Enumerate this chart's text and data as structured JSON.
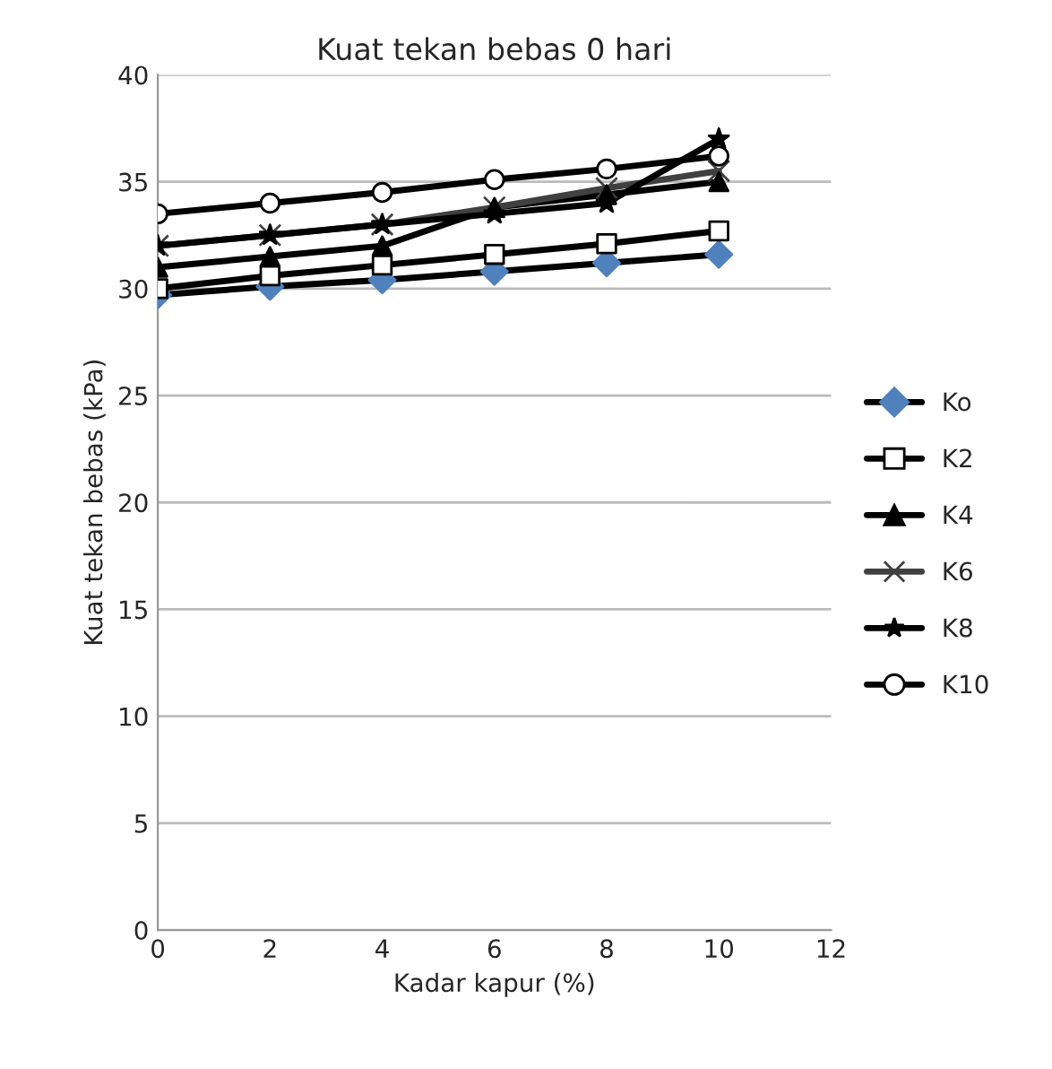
{
  "chart_data": {
    "type": "line",
    "title": "Kuat tekan bebas 0 hari",
    "xlabel": "Kadar kapur (%)",
    "ylabel": "Kuat tekan bebas (kPa)",
    "x": [
      0,
      2,
      4,
      6,
      8,
      10
    ],
    "xlim": [
      0,
      12
    ],
    "xticks": [
      0,
      2,
      4,
      6,
      8,
      10,
      12
    ],
    "ylim": [
      0,
      40
    ],
    "yticks": [
      0,
      5,
      10,
      15,
      20,
      25,
      30,
      35,
      40
    ],
    "grid": "y",
    "legend": "right",
    "line_style": "solid",
    "series": [
      {
        "name": "Ko",
        "color": "#000000",
        "colors": [
          "#4f81bd",
          "#4f81bd",
          "#4f81bd",
          "#4f81bd",
          "#4f81bd",
          "#4f81bd"
        ],
        "marker": "diamond",
        "values": [
          29.7,
          30.1,
          30.4,
          30.8,
          31.2,
          31.6
        ]
      },
      {
        "name": "K2",
        "color": "#000000",
        "marker": "square",
        "values": [
          30.0,
          30.6,
          31.1,
          31.6,
          32.1,
          32.7
        ]
      },
      {
        "name": "K4",
        "color": "#000000",
        "marker": "triangle",
        "values": [
          31.0,
          31.5,
          32.0,
          33.8,
          34.4,
          35.0
        ]
      },
      {
        "name": "K6",
        "color": "#404040",
        "marker": "cross",
        "values": [
          32.0,
          32.5,
          33.0,
          33.8,
          34.7,
          35.5
        ]
      },
      {
        "name": "K8",
        "color": "#000000",
        "marker": "star",
        "values": [
          32.0,
          32.5,
          33.0,
          33.5,
          34.0,
          37.0
        ]
      },
      {
        "name": "K10",
        "color": "#000000",
        "marker": "circle",
        "values": [
          33.5,
          34.0,
          34.5,
          35.1,
          35.6,
          36.2
        ]
      }
    ]
  }
}
